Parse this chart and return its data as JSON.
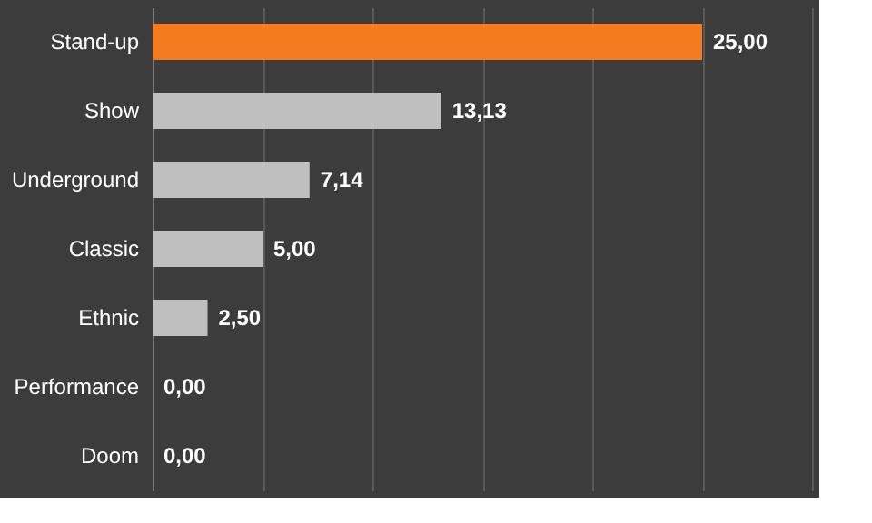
{
  "chart_data": {
    "type": "bar",
    "orientation": "horizontal",
    "categories": [
      "Stand-up",
      "Show",
      "Underground",
      "Classic",
      "Ethnic",
      "Performance",
      "Doom"
    ],
    "values": [
      25.0,
      13.13,
      7.14,
      5.0,
      2.5,
      0.0,
      0.0
    ],
    "colors": [
      "#f47b20",
      "#bfbfbf",
      "#bfbfbf",
      "#bfbfbf",
      "#bfbfbf",
      "#bfbfbf",
      "#bfbfbf"
    ],
    "value_labels": [
      "25,00",
      "13,13",
      "7,14",
      "5,00",
      "2,50",
      "0,00",
      "0,00"
    ],
    "xlim": [
      0,
      30
    ],
    "xticks": [
      {
        "value": 0,
        "label": null
      },
      {
        "value": 5,
        "label": null
      },
      {
        "value": 10,
        "label": null
      },
      {
        "value": 15,
        "label": null
      },
      {
        "value": 20,
        "label": null
      },
      {
        "value": 25,
        "label": null
      },
      {
        "value": 30,
        "label": null
      }
    ],
    "grid": "x",
    "tick_labels": "y"
  }
}
